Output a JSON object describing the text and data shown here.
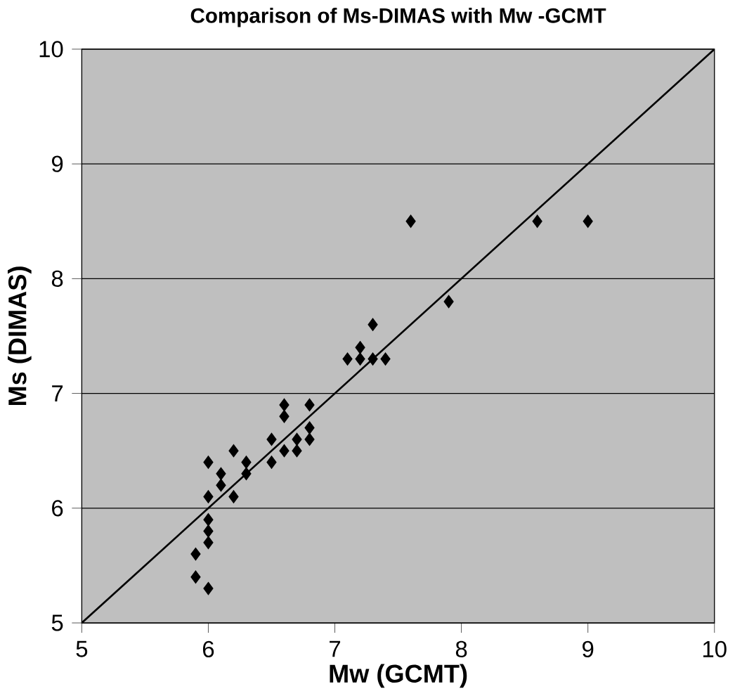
{
  "chart_data": {
    "type": "scatter",
    "title": "Comparison of Ms-DIMAS with Mw -GCMT",
    "xlabel": "Mw  (GCMT)",
    "ylabel": "Ms  (DIMAS)",
    "xlim": [
      5,
      10
    ],
    "ylim": [
      5,
      10
    ],
    "xticks": [
      5,
      6,
      7,
      8,
      9,
      10
    ],
    "yticks": [
      5,
      6,
      7,
      8,
      9,
      10
    ],
    "grid": "y",
    "marker": "diamond",
    "series": [
      {
        "color": "#000000",
        "x": [
          5.9,
          5.9,
          6.0,
          6.0,
          6.0,
          6.0,
          6.0,
          6.0,
          6.1,
          6.1,
          6.2,
          6.2,
          6.3,
          6.3,
          6.5,
          6.5,
          6.6,
          6.6,
          6.6,
          6.7,
          6.7,
          6.8,
          6.8,
          6.8,
          7.1,
          7.2,
          7.2,
          7.3,
          7.3,
          7.4,
          7.6,
          7.9,
          8.6,
          9.0
        ],
        "values": [
          5.6,
          5.4,
          5.3,
          5.7,
          5.8,
          5.9,
          6.1,
          6.4,
          6.2,
          6.3,
          6.5,
          6.1,
          6.4,
          6.3,
          6.4,
          6.6,
          6.5,
          6.8,
          6.9,
          6.6,
          6.5,
          6.6,
          6.7,
          6.9,
          7.3,
          7.3,
          7.4,
          7.3,
          7.6,
          7.3,
          8.5,
          7.8,
          8.5,
          8.5
        ]
      },
      {
        "type": "line",
        "color": "#000000",
        "marker": "none",
        "x": [
          5,
          10
        ],
        "values": [
          5,
          10
        ]
      }
    ]
  }
}
